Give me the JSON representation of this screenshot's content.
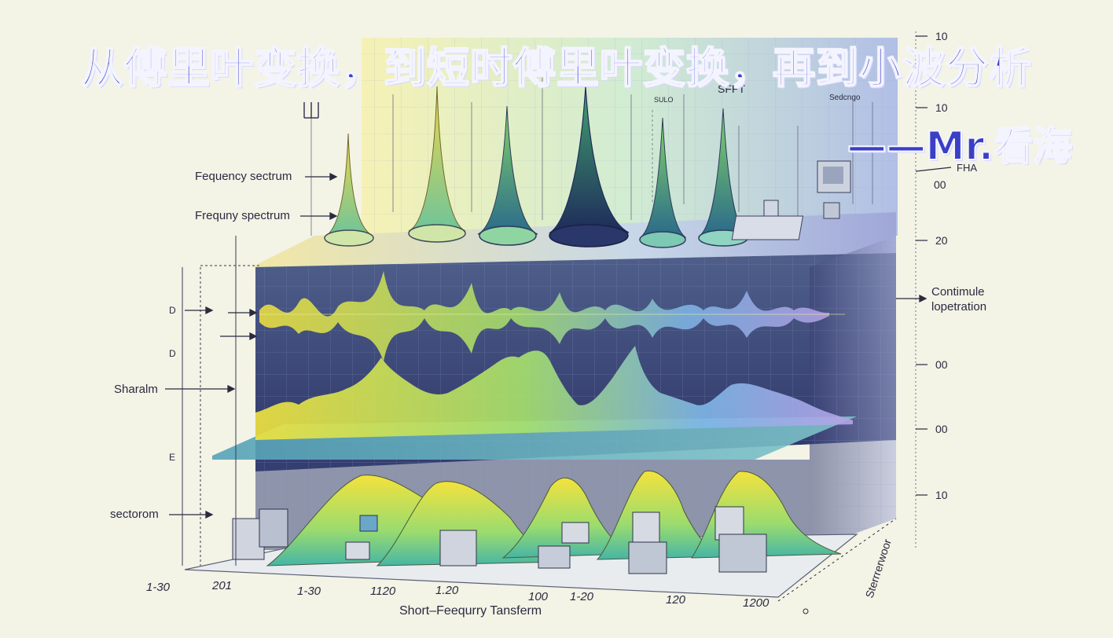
{
  "title": "从傅里叶变换，到短时傅里叶变换，再到小波分析",
  "author": "——Mr.看海",
  "left_labels": [
    "Fequency sectrum",
    "Frequny spectrum",
    "D",
    "D",
    "Sharalm",
    "E",
    "sectorom"
  ],
  "right_labels": [
    "10",
    "10",
    "FHA",
    "00",
    "20",
    "Contimule",
    "lopetration",
    "00",
    "00",
    "10"
  ],
  "small_tags": [
    "SULO",
    "SFFT",
    "Sedcngo"
  ],
  "bottom_ticks": [
    "1-30",
    "201",
    "1-30",
    "1120",
    "1.20",
    "100",
    "1-20",
    "120",
    "1200"
  ],
  "bottom_caption": "Short–Feequrry Tansferm",
  "side_caption": "Sterrrerwoor"
}
